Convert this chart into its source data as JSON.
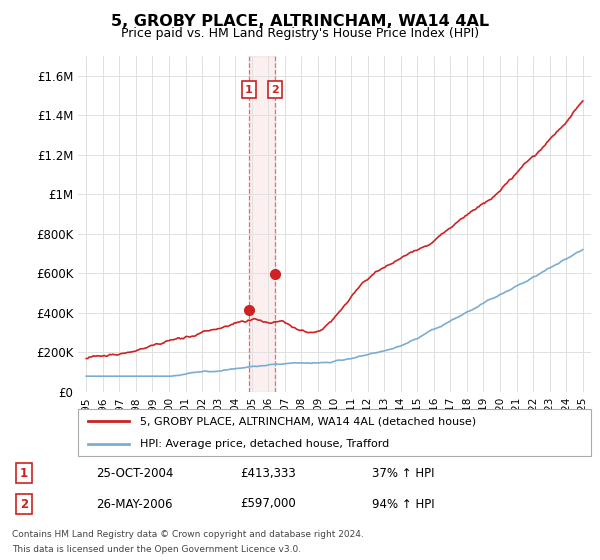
{
  "title": "5, GROBY PLACE, ALTRINCHAM, WA14 4AL",
  "subtitle": "Price paid vs. HM Land Registry's House Price Index (HPI)",
  "ylabel_ticks": [
    "£0",
    "£200K",
    "£400K",
    "£600K",
    "£800K",
    "£1M",
    "£1.2M",
    "£1.4M",
    "£1.6M"
  ],
  "ytick_values": [
    0,
    200000,
    400000,
    600000,
    800000,
    1000000,
    1200000,
    1400000,
    1600000
  ],
  "ylim": [
    0,
    1700000
  ],
  "hpi_color": "#7aadd4",
  "price_color": "#cc2222",
  "transaction1_date": "25-OCT-2004",
  "transaction1_price": 413333,
  "transaction1_price_str": "£413,333",
  "transaction1_pct": "37% ↑ HPI",
  "transaction2_date": "26-MAY-2006",
  "transaction2_price": 597000,
  "transaction2_price_str": "£597,000",
  "transaction2_pct": "94% ↑ HPI",
  "transaction1_x": 2004.82,
  "transaction2_x": 2006.4,
  "legend_label_red": "5, GROBY PLACE, ALTRINCHAM, WA14 4AL (detached house)",
  "legend_label_blue": "HPI: Average price, detached house, Trafford",
  "footnote1": "Contains HM Land Registry data © Crown copyright and database right 2024.",
  "footnote2": "This data is licensed under the Open Government Licence v3.0.",
  "background_color": "#ffffff",
  "grid_color": "#e0e0e0"
}
